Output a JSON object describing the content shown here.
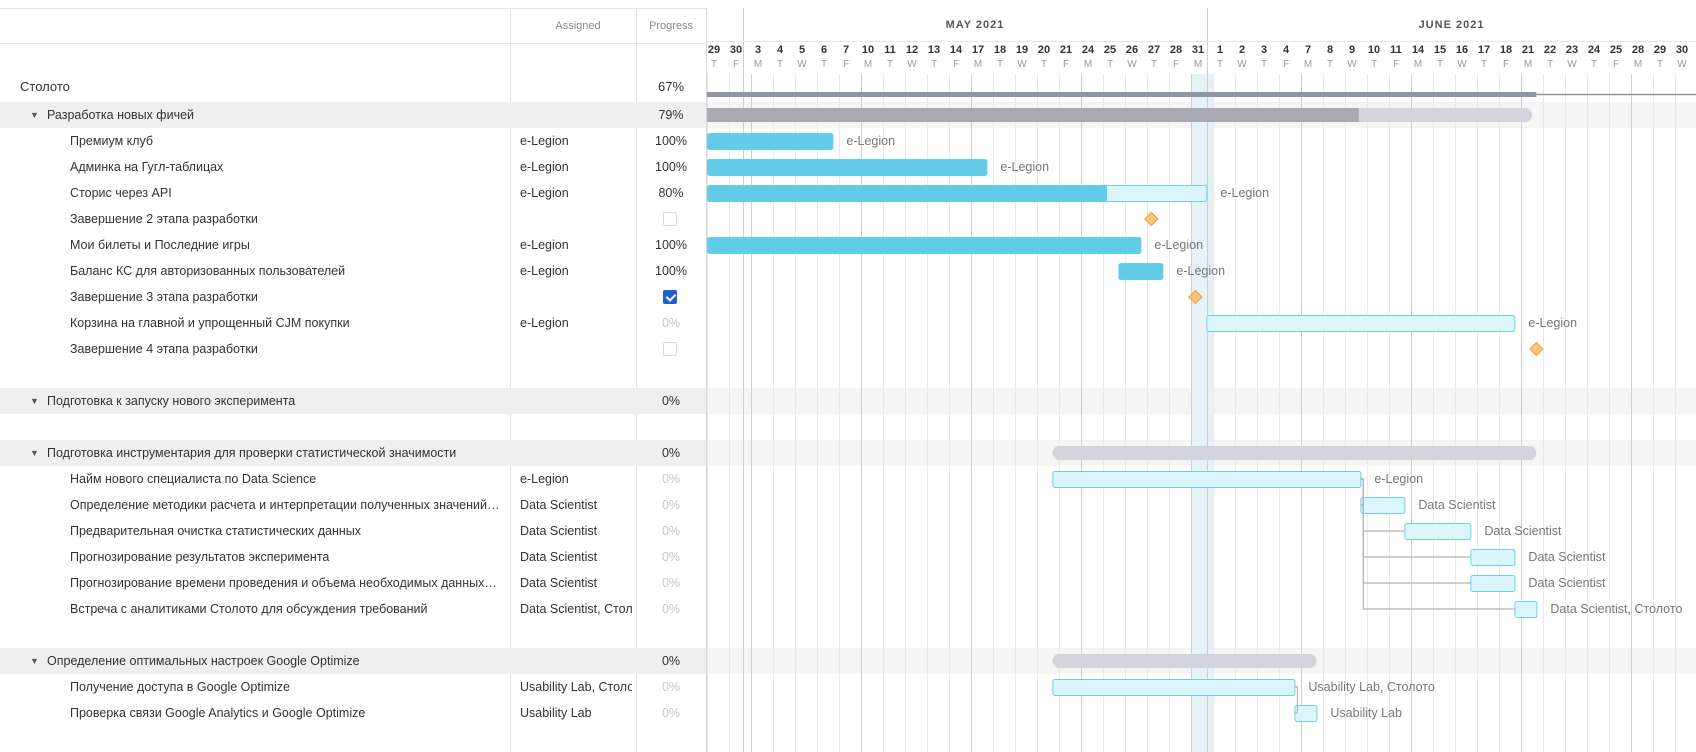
{
  "columns": {
    "assigned": "Assigned",
    "progress": "Progress"
  },
  "months": [
    "MAY 2021",
    "JUNE 2021"
  ],
  "days": [
    {
      "d": "29",
      "w": "T"
    },
    {
      "d": "30",
      "w": "F"
    },
    {
      "d": "3",
      "w": "M"
    },
    {
      "d": "4",
      "w": "T"
    },
    {
      "d": "5",
      "w": "W"
    },
    {
      "d": "6",
      "w": "T"
    },
    {
      "d": "7",
      "w": "F"
    },
    {
      "d": "10",
      "w": "M"
    },
    {
      "d": "11",
      "w": "T"
    },
    {
      "d": "12",
      "w": "W"
    },
    {
      "d": "13",
      "w": "T"
    },
    {
      "d": "14",
      "w": "F"
    },
    {
      "d": "17",
      "w": "M"
    },
    {
      "d": "18",
      "w": "T"
    },
    {
      "d": "19",
      "w": "W"
    },
    {
      "d": "20",
      "w": "T"
    },
    {
      "d": "21",
      "w": "F"
    },
    {
      "d": "24",
      "w": "M"
    },
    {
      "d": "25",
      "w": "T"
    },
    {
      "d": "26",
      "w": "W"
    },
    {
      "d": "27",
      "w": "T"
    },
    {
      "d": "28",
      "w": "F"
    },
    {
      "d": "31",
      "w": "M"
    },
    {
      "d": "1",
      "w": "T"
    },
    {
      "d": "2",
      "w": "W"
    },
    {
      "d": "3",
      "w": "T"
    },
    {
      "d": "4",
      "w": "F"
    },
    {
      "d": "7",
      "w": "M"
    },
    {
      "d": "8",
      "w": "T"
    },
    {
      "d": "9",
      "w": "W"
    },
    {
      "d": "10",
      "w": "T"
    },
    {
      "d": "11",
      "w": "F"
    },
    {
      "d": "14",
      "w": "M"
    },
    {
      "d": "15",
      "w": "T"
    },
    {
      "d": "16",
      "w": "W"
    },
    {
      "d": "17",
      "w": "T"
    },
    {
      "d": "18",
      "w": "F"
    },
    {
      "d": "21",
      "w": "M"
    },
    {
      "d": "22",
      "w": "T"
    },
    {
      "d": "23",
      "w": "W"
    },
    {
      "d": "24",
      "w": "T"
    },
    {
      "d": "25",
      "w": "F"
    },
    {
      "d": "28",
      "w": "M"
    },
    {
      "d": "29",
      "w": "T"
    },
    {
      "d": "30",
      "w": "W"
    }
  ],
  "today": "31",
  "colors": {
    "done_bar": "#62cce8",
    "pending_bar": "#dbf6fb",
    "pending_border": "#6cd0ea",
    "group_bar": "#d3d3dc",
    "group_done": "#a9a9b2",
    "project_line": "#8f96a0",
    "milestone": "#fbc77a",
    "milestone_border": "#e89c3c",
    "checkbox_on": "#1f5fd6"
  },
  "rows": [
    {
      "type": "project",
      "name": "Столото",
      "assignee": "",
      "progress": "67%",
      "percent": 0.67,
      "start": 0,
      "end": 45
    },
    {
      "type": "group",
      "name": "Разработка новых фичей",
      "assignee": "",
      "progress": "79%",
      "percent": 0.79,
      "start": 0,
      "end": 37.5
    },
    {
      "type": "task",
      "name": "Премиум клуб",
      "assignee": "e-Legion",
      "progress": "100%",
      "percent": 1,
      "start": 0,
      "end": 5.7,
      "label": "e-Legion"
    },
    {
      "type": "task",
      "name": "Админка на Гугл-таблицах",
      "assignee": "e-Legion",
      "progress": "100%",
      "percent": 1,
      "start": 0,
      "end": 12.7,
      "label": "e-Legion"
    },
    {
      "type": "task",
      "name": "Сторис через API",
      "assignee": "e-Legion",
      "progress": "80%",
      "percent": 0.8,
      "start": 0,
      "end": 22.7,
      "label": "e-Legion"
    },
    {
      "type": "milestone",
      "name": "Завершение 2 этапа разработки",
      "assignee": "",
      "progress": "",
      "checked": false,
      "at": 20.2
    },
    {
      "type": "task",
      "name": "Мои билеты и Последние игры",
      "assignee": "e-Legion",
      "progress": "100%",
      "percent": 1,
      "start": 0,
      "end": 19.7,
      "label": "e-Legion"
    },
    {
      "type": "task",
      "name": "Баланс КС для авторизованных пользователей",
      "assignee": "e-Legion",
      "progress": "100%",
      "percent": 1,
      "start": 18.7,
      "end": 20.7,
      "label": "e-Legion"
    },
    {
      "type": "milestone",
      "name": "Завершение 3 этапа разработки",
      "assignee": "",
      "progress": "",
      "checked": true,
      "at": 22.2
    },
    {
      "type": "task",
      "name": "Корзина на главной и упрощенный CJM покупки",
      "assignee": "e-Legion",
      "progress": "0%",
      "percent": 0,
      "start": 22.7,
      "end": 36.7,
      "label": "e-Legion"
    },
    {
      "type": "milestone",
      "name": "Завершение 4 этапа разработки",
      "assignee": "",
      "progress": "",
      "checked": false,
      "at": 37.7
    },
    {
      "type": "spacer"
    },
    {
      "type": "group",
      "name": "Подготовка к запуску нового эксперимента",
      "assignee": "",
      "progress": "0%",
      "percent": 0
    },
    {
      "type": "spacer"
    },
    {
      "type": "group",
      "name": "Подготовка инструментария для проверки статистической значимости",
      "assignee": "",
      "progress": "0%",
      "percent": 0,
      "start": 15.7,
      "end": 37.7
    },
    {
      "type": "task",
      "name": "Найм нового специалиста по Data Science",
      "assignee": "e-Legion",
      "progress": "0%",
      "percent": 0,
      "start": 15.7,
      "end": 29.7,
      "label": "e-Legion"
    },
    {
      "type": "task",
      "name": "Определение методики расчета и интерпретации полученных значений…",
      "assignee": "Data Scientist",
      "progress": "0%",
      "percent": 0,
      "start": 29.7,
      "end": 31.7,
      "label": "Data Scientist"
    },
    {
      "type": "task",
      "name": "Предварительная очистка статистических данных",
      "assignee": "Data Scientist",
      "progress": "0%",
      "percent": 0,
      "start": 31.7,
      "end": 34.7,
      "label": "Data Scientist"
    },
    {
      "type": "task",
      "name": "Прогнозирование результатов эксперимента",
      "assignee": "Data Scientist",
      "progress": "0%",
      "percent": 0,
      "start": 34.7,
      "end": 36.7,
      "label": "Data Scientist"
    },
    {
      "type": "task",
      "name": "Прогнозирование времени проведения и объема необходимых данных…",
      "assignee": "Data Scientist",
      "progress": "0%",
      "percent": 0,
      "start": 34.7,
      "end": 36.7,
      "label": "Data Scientist"
    },
    {
      "type": "task",
      "name": "Встреча с аналитиками Столото для обсуждения требований",
      "assignee": "Data Scientist, Стол",
      "progress": "0%",
      "percent": 0,
      "start": 36.7,
      "end": 37.7,
      "label": "Data Scientist, Столото"
    },
    {
      "type": "spacer"
    },
    {
      "type": "group",
      "name": "Определение оптимальных настроек Google Optimize",
      "assignee": "",
      "progress": "0%",
      "percent": 0,
      "start": 15.7,
      "end": 27.7
    },
    {
      "type": "task",
      "name": "Получение доступа в Google Optimize",
      "assignee": "Usability Lab, Столо",
      "progress": "0%",
      "percent": 0,
      "start": 15.7,
      "end": 26.7,
      "label": "Usability Lab, Столото"
    },
    {
      "type": "task",
      "name": "Проверка связи Google Analytics и Google Optimize",
      "assignee": "Usability Lab",
      "progress": "0%",
      "percent": 0,
      "start": 26.7,
      "end": 27.7,
      "label": "Usability Lab"
    }
  ],
  "dependencies": [
    {
      "from": 15,
      "to": [
        16,
        17,
        18,
        19,
        20
      ]
    },
    {
      "from": 23,
      "to": [
        24
      ]
    }
  ]
}
